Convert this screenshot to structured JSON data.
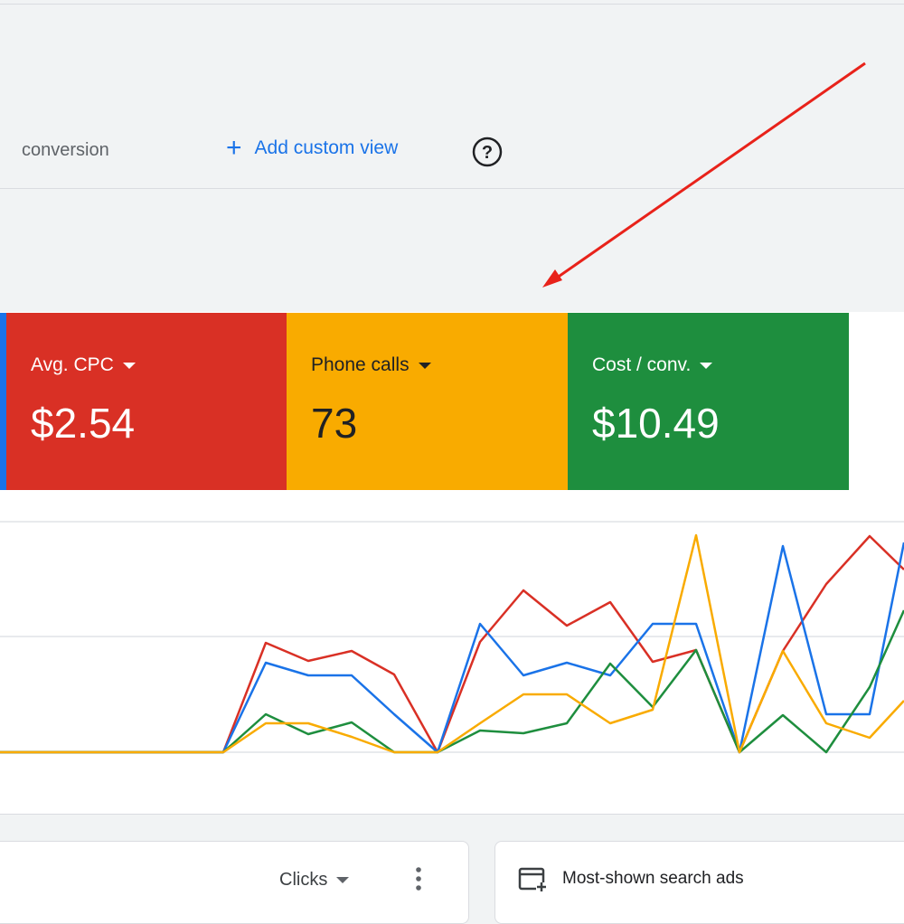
{
  "header": {
    "tab": "conversion",
    "add_view": "Add custom view"
  },
  "metrics": [
    {
      "label": "Avg. CPC",
      "value": "$2.54"
    },
    {
      "label": "Phone calls",
      "value": "73"
    },
    {
      "label": "Cost / conv.",
      "value": "$10.49"
    }
  ],
  "table_card": {
    "metric": "Clicks"
  },
  "ads_card": {
    "title": "Most-shown search ads"
  }
}
